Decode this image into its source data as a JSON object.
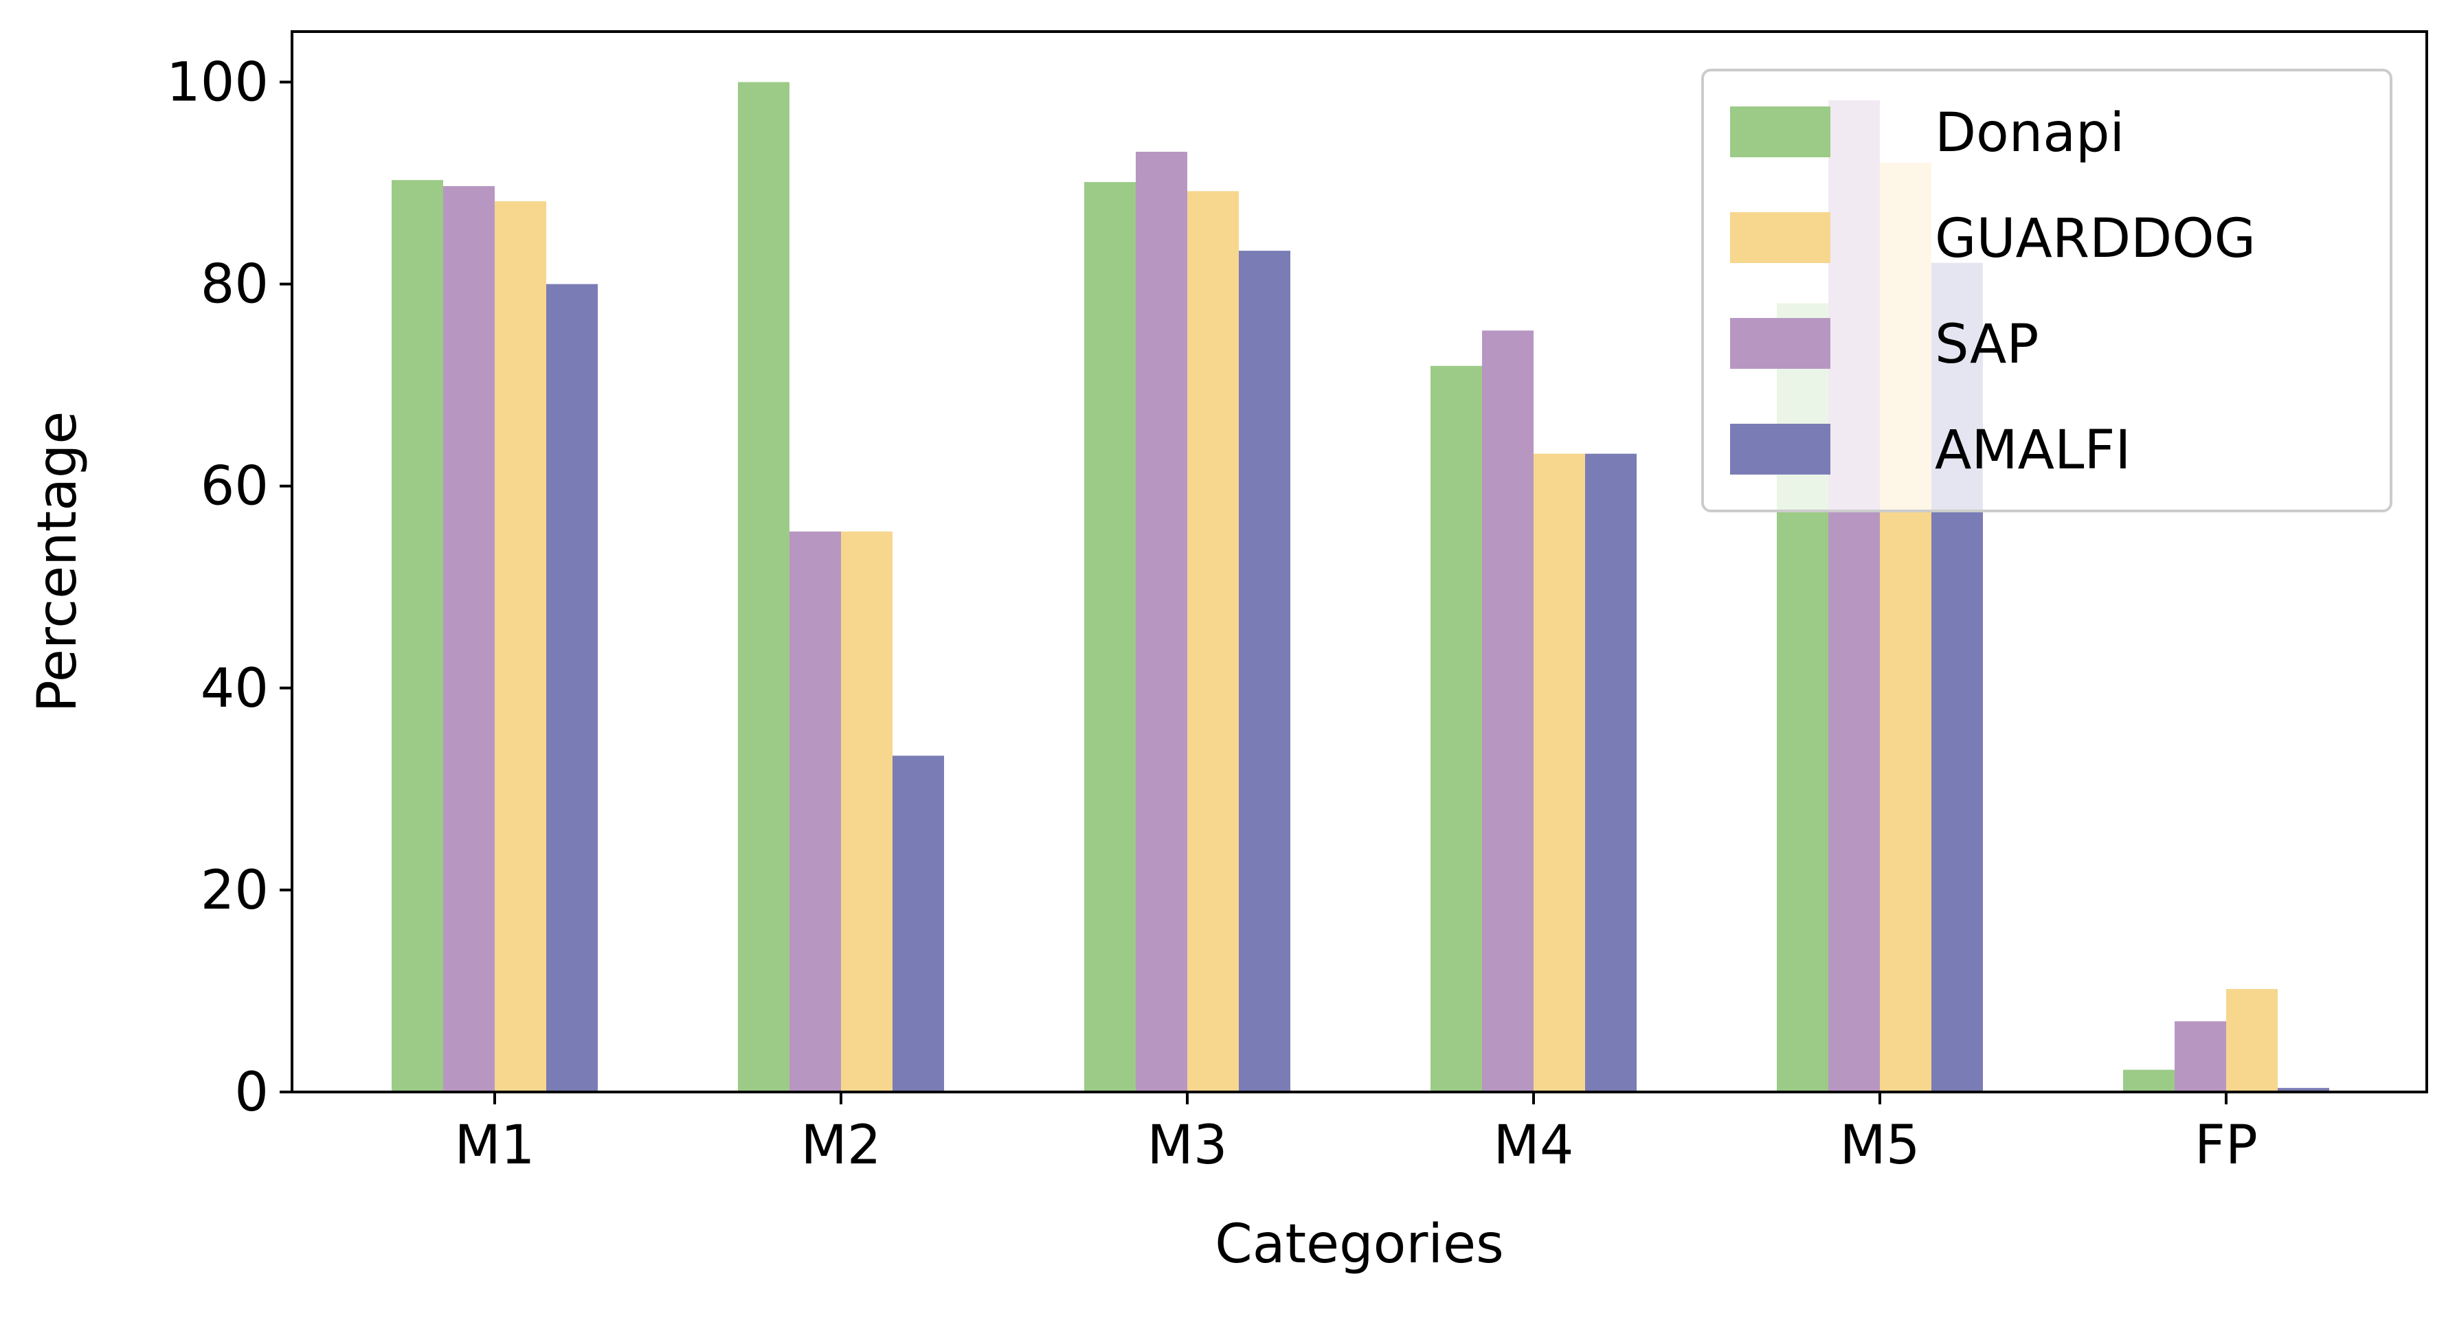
{
  "chart_data": {
    "type": "bar",
    "title": "",
    "xlabel": "Categories",
    "ylabel": "Percentage",
    "categories": [
      "M1",
      "M2",
      "M3",
      "M4",
      "M5",
      "FP"
    ],
    "ylim": [
      0,
      105
    ],
    "yticks": [
      "0",
      "20",
      "40",
      "60",
      "80",
      "100"
    ],
    "grid": false,
    "legend_position": "top-right",
    "series": [
      {
        "name": "Donapi",
        "color": "#9ccb88",
        "values": [
          90.3,
          100.0,
          90.1,
          71.9,
          78.1,
          2.2
        ]
      },
      {
        "name": "SAP",
        "color": "#b797c2",
        "values": [
          89.7,
          55.5,
          93.1,
          75.4,
          98.2,
          7.0
        ]
      },
      {
        "name": "GUARDDOG",
        "color": "#f7d68e",
        "values": [
          88.2,
          55.5,
          89.2,
          63.2,
          92.0,
          10.2
        ]
      },
      {
        "name": "AMALFI",
        "color": "#7a7cb5",
        "values": [
          80.0,
          33.3,
          83.3,
          63.2,
          82.1,
          0.4
        ]
      }
    ],
    "legend_order": [
      "Donapi",
      "GUARDDOG",
      "SAP",
      "AMALFI"
    ]
  }
}
